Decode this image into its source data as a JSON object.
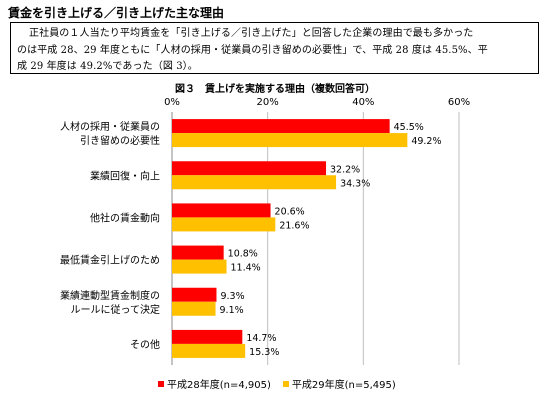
{
  "heading": "賃金を引き上げる／引き上げた主な理由",
  "textbox": {
    "lines": [
      "正社員の１人当たり平均賃金を「引き上げる／引き上げた」と回答した企業の理由で最も多かった",
      "のは平成 28、29 年度ともに「人材の採用・従業員の引き留めの必要性」で、平成 28 度は 45.5%、平",
      "成 29 年度は 49.2%であった（図 3）。"
    ]
  },
  "colors": {
    "series1": "#ff0000",
    "series2": "#ffc000",
    "grid": "#bfbfbf",
    "axis": "#888888"
  },
  "chart_data": {
    "type": "bar",
    "orientation": "horizontal",
    "title": "図３　賃上げを実施する理由（複数回答可）",
    "xlim": [
      0,
      60
    ],
    "ticks": [
      "0%",
      "20%",
      "40%",
      "60%"
    ],
    "tick_values": [
      0,
      20,
      40,
      60
    ],
    "grid": true,
    "legend_position": "bottom",
    "categories": [
      [
        "人材の採用・従業員の",
        "引き留めの必要性"
      ],
      [
        "業績回復・向上"
      ],
      [
        "他社の賃金動向"
      ],
      [
        "最低賃金引上げのため"
      ],
      [
        "業績連動型賃金制度の",
        "ルールに従って決定"
      ],
      [
        "その他"
      ]
    ],
    "series": [
      {
        "name": "平成28年度(n=4,905)",
        "values": [
          45.5,
          32.2,
          20.6,
          10.8,
          9.3,
          14.7
        ],
        "labels": [
          "45.5%",
          "32.2%",
          "20.6%",
          "10.8%",
          "9.3%",
          "14.7%"
        ]
      },
      {
        "name": "平成29年度(n=5,495)",
        "values": [
          49.2,
          34.3,
          21.6,
          11.4,
          9.1,
          15.3
        ],
        "labels": [
          "49.2%",
          "34.3%",
          "21.6%",
          "11.4%",
          "9.1%",
          "15.3%"
        ]
      }
    ]
  }
}
